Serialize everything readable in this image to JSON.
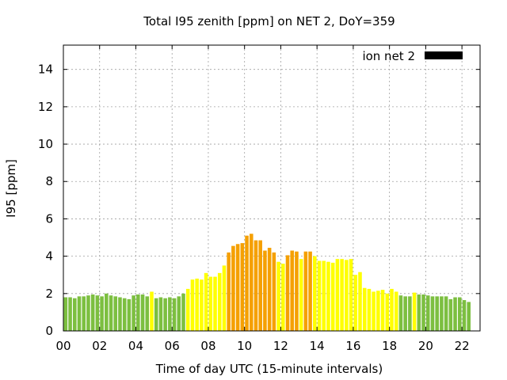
{
  "chart_data": {
    "type": "bar",
    "title": "Total I95 zenith [ppm] on NET 2, DoY=359",
    "xlabel": "Time of day UTC (15-minute intervals)",
    "ylabel": "I95 [ppm]",
    "ylim": [
      0,
      15.3
    ],
    "xlim": [
      0,
      23
    ],
    "grid": true,
    "legend": {
      "label": "ion net 2",
      "color": "#000000",
      "position": "top-right"
    },
    "x_ticks": [
      {
        "value": 0,
        "label": "00"
      },
      {
        "value": 2,
        "label": "02"
      },
      {
        "value": 4,
        "label": "04"
      },
      {
        "value": 6,
        "label": "06"
      },
      {
        "value": 8,
        "label": "08"
      },
      {
        "value": 10,
        "label": "10"
      },
      {
        "value": 12,
        "label": "12"
      },
      {
        "value": 14,
        "label": "14"
      },
      {
        "value": 16,
        "label": "16"
      },
      {
        "value": 18,
        "label": "18"
      },
      {
        "value": 20,
        "label": "20"
      },
      {
        "value": 22,
        "label": "22"
      }
    ],
    "y_ticks": [
      {
        "value": 0,
        "label": "0"
      },
      {
        "value": 2,
        "label": "2"
      },
      {
        "value": 4,
        "label": "4"
      },
      {
        "value": 6,
        "label": "6"
      },
      {
        "value": 8,
        "label": "8"
      },
      {
        "value": 10,
        "label": "10"
      },
      {
        "value": 12,
        "label": "12"
      },
      {
        "value": 14,
        "label": "14"
      }
    ],
    "colors": {
      "green": "#7cbf40",
      "yellow": "#ffff00",
      "orange": "#f5a000"
    },
    "bar_width_hours": 0.2,
    "series": [
      {
        "values": [
          1.8,
          1.8,
          1.75,
          1.85,
          1.85,
          1.9,
          1.95,
          1.9,
          1.85,
          2.0,
          1.9,
          1.85,
          1.8,
          1.75,
          1.7,
          1.9,
          1.95,
          1.95,
          1.85,
          2.1,
          1.75,
          1.8,
          1.75,
          1.8,
          1.75,
          1.85,
          2.0,
          2.25,
          2.75,
          2.8,
          2.75,
          3.1,
          2.9,
          2.9,
          3.1,
          3.5,
          4.2,
          4.55,
          4.65,
          4.7,
          5.1,
          5.2,
          4.85,
          4.85,
          4.3,
          4.45,
          4.2,
          3.7,
          3.6,
          4.05,
          4.3,
          4.25,
          3.85,
          4.25,
          4.25,
          4.0,
          3.75,
          3.75,
          3.7,
          3.65,
          3.85,
          3.85,
          3.8,
          3.85,
          3.0,
          3.15,
          2.3,
          2.25,
          2.1,
          2.15,
          2.2,
          2.0,
          2.25,
          2.1,
          1.9,
          1.85,
          1.85,
          2.05,
          1.95,
          1.95,
          1.9,
          1.85,
          1.85,
          1.85,
          1.85,
          1.7,
          1.8,
          1.8,
          1.65,
          1.55
        ],
        "colors": [
          "green",
          "green",
          "green",
          "green",
          "green",
          "green",
          "green",
          "green",
          "green",
          "green",
          "green",
          "green",
          "green",
          "green",
          "green",
          "green",
          "green",
          "green",
          "green",
          "yellow",
          "green",
          "green",
          "green",
          "green",
          "green",
          "green",
          "green",
          "yellow",
          "yellow",
          "yellow",
          "yellow",
          "yellow",
          "yellow",
          "yellow",
          "yellow",
          "yellow",
          "orange",
          "orange",
          "orange",
          "orange",
          "orange",
          "orange",
          "orange",
          "orange",
          "orange",
          "orange",
          "orange",
          "yellow",
          "yellow",
          "orange",
          "orange",
          "orange",
          "yellow",
          "orange",
          "orange",
          "yellow",
          "yellow",
          "yellow",
          "yellow",
          "yellow",
          "yellow",
          "yellow",
          "yellow",
          "yellow",
          "yellow",
          "yellow",
          "yellow",
          "yellow",
          "yellow",
          "yellow",
          "yellow",
          "yellow",
          "yellow",
          "yellow",
          "green",
          "green",
          "green",
          "yellow",
          "green",
          "green",
          "green",
          "green",
          "green",
          "green",
          "green",
          "green",
          "green",
          "green",
          "green",
          "green"
        ]
      }
    ]
  }
}
